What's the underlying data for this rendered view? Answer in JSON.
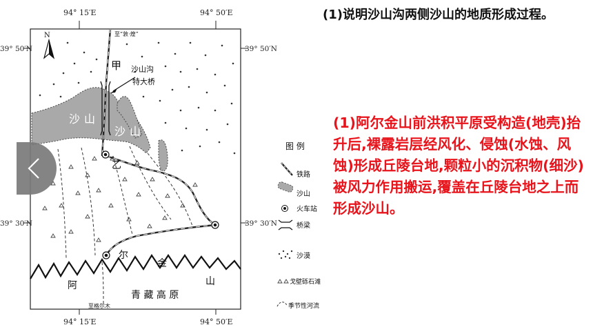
{
  "question": "(1)说明沙山沟两侧沙山的地质形成过程。",
  "answer": "(1)阿尔金山前洪积平原受构造(地壳)抬升后,裸露岩层经风化、侵蚀(水蚀、风蚀)形成丘陵台地,颗粒小的沉积物(细沙)被风力作用搬运,覆盖在丘陵台地之上而形成沙山。",
  "map": {
    "lon_top_left": "94° 15′E",
    "lon_top_right": "94° 50′E",
    "lon_bottom_left": "94° 15′E",
    "lon_bottom_right": "94° 50′E",
    "lat_top_left": "39° 50′N",
    "lat_top_right": "39° 50′N",
    "lat_bottom_left": "39° 30′N",
    "lat_bottom_right": "39° 30′N",
    "north": "N",
    "route_label": "至“敦·煌”",
    "bridge_label_1": "沙山沟",
    "bridge_label_2": "特大桥",
    "place_jia": "甲",
    "place_yi": "乙",
    "sand_1": "沙",
    "sand_2": "山",
    "sand_3": "沙",
    "sand_4": "山",
    "mountain_1": "阿",
    "mountain_2": "尔",
    "mountain_3": "金",
    "mountain_4": "山",
    "plateau": "青 藏 高 原",
    "bottom_route": "至格尔木"
  },
  "legend": {
    "title": "图  例",
    "railway": "铁路",
    "sandhill": "沙山",
    "station": "火车站",
    "bridge": "桥梁",
    "desert": "沙漠",
    "gobi": "戈壁砾石滩",
    "river": "季节性河流"
  },
  "nav": {
    "icon": "chevron-left-icon"
  }
}
